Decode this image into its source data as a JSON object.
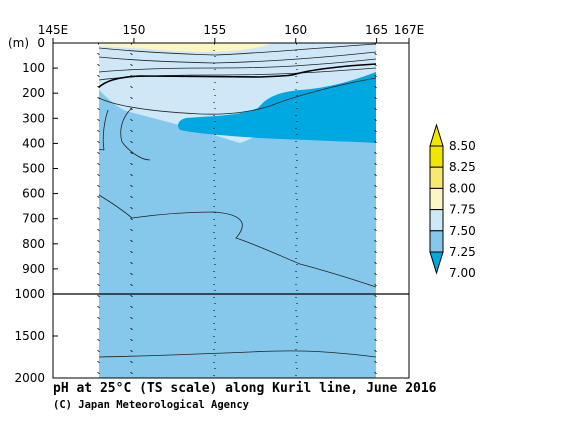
{
  "chart_data": {
    "type": "contour",
    "title": "pH at 25°C (TS scale) along Kuril line, June 2016",
    "credit": "(C) Japan Meteorological Agency",
    "x_axis": {
      "ticks": [
        "145E",
        "150",
        "155",
        "160",
        "165",
        "167E"
      ],
      "lon_values": [
        145,
        150,
        155,
        160,
        165,
        167
      ],
      "range": [
        145,
        167
      ]
    },
    "y_axis": {
      "unit": "(m)",
      "ticks_upper": [
        "0",
        "100",
        "200",
        "300",
        "400",
        "500",
        "600",
        "700",
        "800",
        "900",
        "1000"
      ],
      "ticks_lower": [
        "1500",
        "2000"
      ],
      "upper_range": [
        0,
        1000
      ],
      "lower_range": [
        1000,
        2000
      ]
    },
    "section_lon_range": [
      147.8,
      165
    ],
    "colorbar": {
      "levels": [
        "8.50",
        "8.25",
        "8.00",
        "7.75",
        "7.50",
        "7.25",
        "7.00"
      ],
      "fill_colors": [
        "#f2e600",
        "#f6e870",
        "#fbf6c4",
        "#cfe8f8",
        "#85c8ec",
        "#00a8e2"
      ]
    },
    "shaded_regions": [
      {
        "range": "7.75-8.00",
        "color": "#fbf6c4",
        "location": "near-surface, west of about 159E"
      },
      {
        "range": "7.50-7.75",
        "color": "#cfe8f8",
        "location": "upper 100-250 m"
      },
      {
        "range": "7.25-7.50",
        "color": "#85c8ec",
        "location": "most of section below 200 m"
      },
      {
        "range": "7.00-7.25",
        "color": "#00a8e2",
        "location": "about 150-400 m, east of about 153E"
      }
    ]
  }
}
